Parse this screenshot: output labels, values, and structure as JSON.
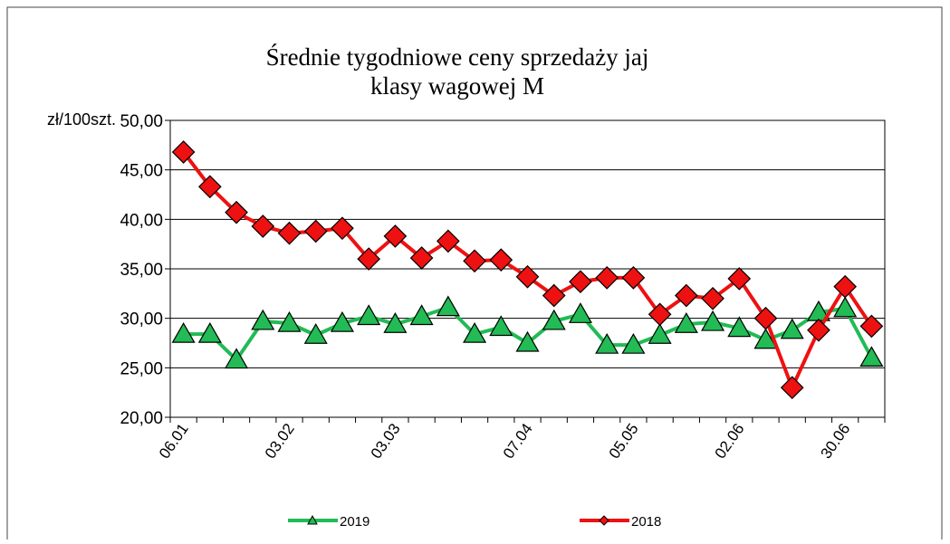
{
  "chart_data": {
    "type": "line",
    "title": [
      "Średnie tygodniowe ceny sprzedaży jaj",
      "klasy wagowej M"
    ],
    "y_label": "zł/100szt.",
    "categories": [
      "06.01",
      null,
      null,
      null,
      "03.02",
      null,
      null,
      null,
      "03.03",
      null,
      null,
      null,
      null,
      "07.04",
      null,
      null,
      null,
      "05.05",
      null,
      null,
      null,
      "02.06",
      null,
      null,
      null,
      "30.06",
      null
    ],
    "series": [
      {
        "name": "2019",
        "color": "#22bb55",
        "marker": "triangle",
        "values": [
          28.4,
          28.4,
          25.8,
          29.7,
          29.5,
          28.3,
          29.5,
          30.2,
          29.4,
          30.2,
          31.1,
          28.4,
          29.1,
          27.5,
          29.7,
          30.4,
          27.3,
          27.3,
          28.3,
          29.4,
          29.6,
          29.0,
          27.8,
          28.8,
          30.6,
          31.0,
          26.0
        ]
      },
      {
        "name": "2018",
        "color": "#ee1111",
        "marker": "diamond",
        "values": [
          46.8,
          43.3,
          40.7,
          39.3,
          38.6,
          38.8,
          39.1,
          36.0,
          38.3,
          36.1,
          37.8,
          35.8,
          35.9,
          34.2,
          32.3,
          33.7,
          34.1,
          34.1,
          30.4,
          32.3,
          32.0,
          34.0,
          30.0,
          23.0,
          28.8,
          33.2,
          29.2
        ]
      }
    ],
    "ylim": [
      20,
      50
    ],
    "yticks": [
      {
        "value": 20,
        "label": "20,00"
      },
      {
        "value": 25,
        "label": "25,00"
      },
      {
        "value": 30,
        "label": "30,00"
      },
      {
        "value": 35,
        "label": "35,00"
      },
      {
        "value": 40,
        "label": "40,00"
      },
      {
        "value": 45,
        "label": "45,00"
      },
      {
        "value": 50,
        "label": "50,00"
      }
    ],
    "grid": true,
    "legend": "bottom"
  }
}
